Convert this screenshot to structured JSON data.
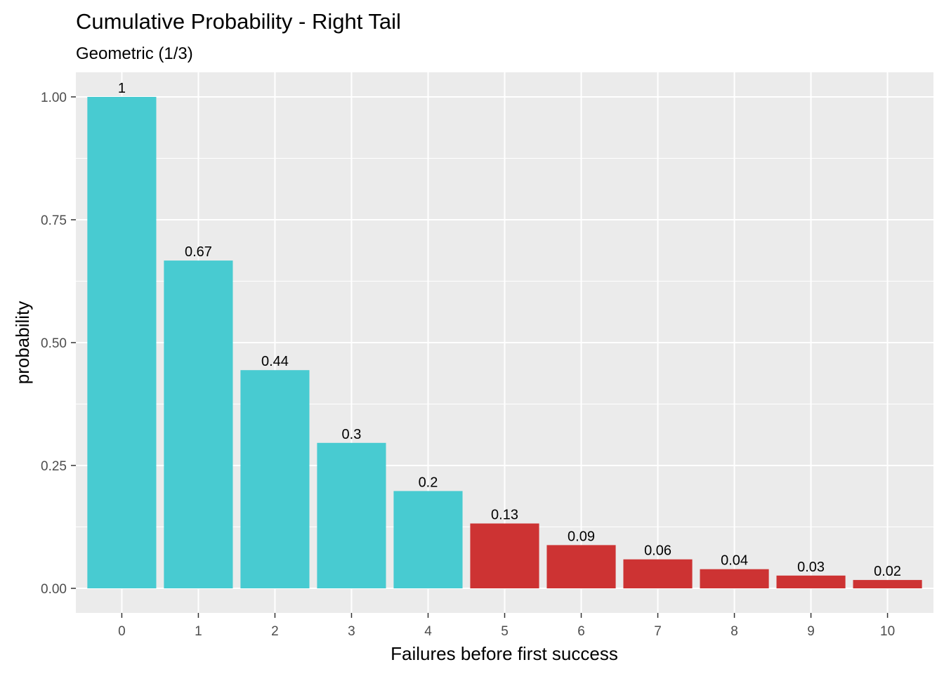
{
  "chart_data": {
    "type": "bar",
    "title": "Cumulative Probability - Right Tail",
    "subtitle": "Geometric (1/3)",
    "xlabel": "Failures before first success",
    "ylabel": "probability",
    "categories": [
      "0",
      "1",
      "2",
      "3",
      "4",
      "5",
      "6",
      "7",
      "8",
      "9",
      "10"
    ],
    "values": [
      1.0,
      0.667,
      0.444,
      0.296,
      0.198,
      0.132,
      0.088,
      0.059,
      0.039,
      0.026,
      0.017
    ],
    "data_labels": [
      "1",
      "0.67",
      "0.44",
      "0.3",
      "0.2",
      "0.13",
      "0.09",
      "0.06",
      "0.04",
      "0.03",
      "0.02"
    ],
    "highlight_from_index": 5,
    "ylim": [
      -0.05,
      1.05
    ],
    "y_ticks": [
      0,
      0.25,
      0.5,
      0.75,
      1.0
    ],
    "y_tick_labels": [
      "0.00",
      "0.25",
      "0.50",
      "0.75",
      "1.00"
    ],
    "grid": true,
    "legend": "none",
    "colors": {
      "normal": "#48CBD1",
      "highlight": "#CD3333",
      "panel_background": "#EBEBEB",
      "grid": "#FFFFFF"
    }
  }
}
